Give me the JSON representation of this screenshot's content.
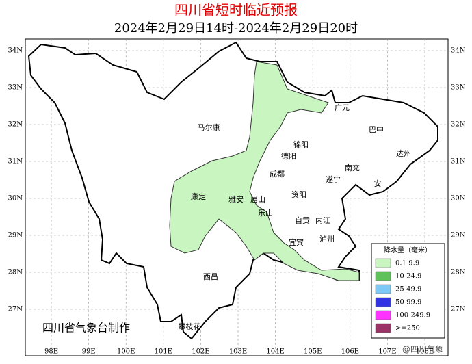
{
  "header": {
    "title": "四川省短时临近预报",
    "subtitle": "2024年2月29日14时-2024年2月29日20时"
  },
  "axes": {
    "lon_ticks": [
      "98E",
      "99E",
      "100E",
      "101E",
      "102E",
      "103E",
      "104E",
      "105E",
      "106E",
      "107E",
      "108E"
    ],
    "lat_ticks": [
      "34N",
      "33N",
      "32N",
      "31N",
      "30N",
      "29N",
      "28N",
      "27N"
    ]
  },
  "cities": [
    "广元",
    "巴中",
    "达州",
    "锦阳",
    "德阳",
    "南充",
    "遂宁",
    "安",
    "成都",
    "雅安",
    "眉山",
    "资阳",
    "乐山",
    "自贡",
    "内江",
    "宜宾",
    "泸州",
    "马尔康",
    "康定",
    "西昌",
    "攀枝花"
  ],
  "legend": {
    "title": "降水量（毫米）",
    "items": [
      {
        "label": "0.1-9.9",
        "color": "#c8f5c0"
      },
      {
        "label": "10-24.9",
        "color": "#5ec15a"
      },
      {
        "label": "25-49.9",
        "color": "#7ec8f5"
      },
      {
        "label": "50-99.9",
        "color": "#3333e6"
      },
      {
        "label": "100-249.9",
        "color": "#ff33ff"
      },
      {
        "label": ">=250",
        "color": "#993366"
      }
    ]
  },
  "credit": "四川省气象台制作",
  "watermark": "@四川气象"
}
